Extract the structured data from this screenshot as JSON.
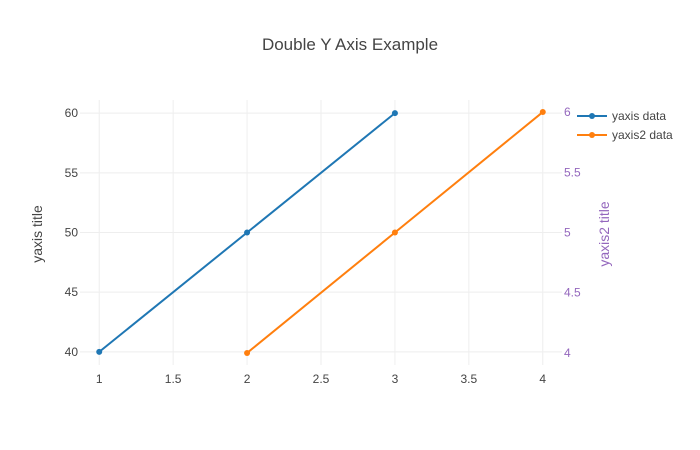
{
  "chart_data": {
    "type": "line",
    "title": "Double Y Axis Example",
    "legend_position": "top-right",
    "grid": true,
    "xlim": [
      0.87,
      4.13
    ],
    "x_ticks": [
      "1",
      "1.5",
      "2",
      "2.5",
      "3",
      "3.5",
      "4"
    ],
    "yaxis": {
      "title": "yaxis title",
      "range": [
        38.9,
        61.1
      ],
      "ticks": [
        "40",
        "45",
        "50",
        "55",
        "60"
      ],
      "color": "#444444"
    },
    "yaxis2": {
      "title": "yaxis2 title",
      "range": [
        3.9,
        6.1
      ],
      "ticks": [
        "4",
        "4.5",
        "5",
        "5.5",
        "6"
      ],
      "color": "#9467bd"
    },
    "series": [
      {
        "name": "yaxis data",
        "axis": "y",
        "color": "#1f77b4",
        "x": [
          1,
          2,
          3
        ],
        "y": [
          40,
          50,
          60
        ]
      },
      {
        "name": "yaxis2 data",
        "axis": "y2",
        "color": "#ff7f0e",
        "x": [
          2,
          3,
          4
        ],
        "y": [
          4,
          5,
          6
        ]
      }
    ]
  }
}
